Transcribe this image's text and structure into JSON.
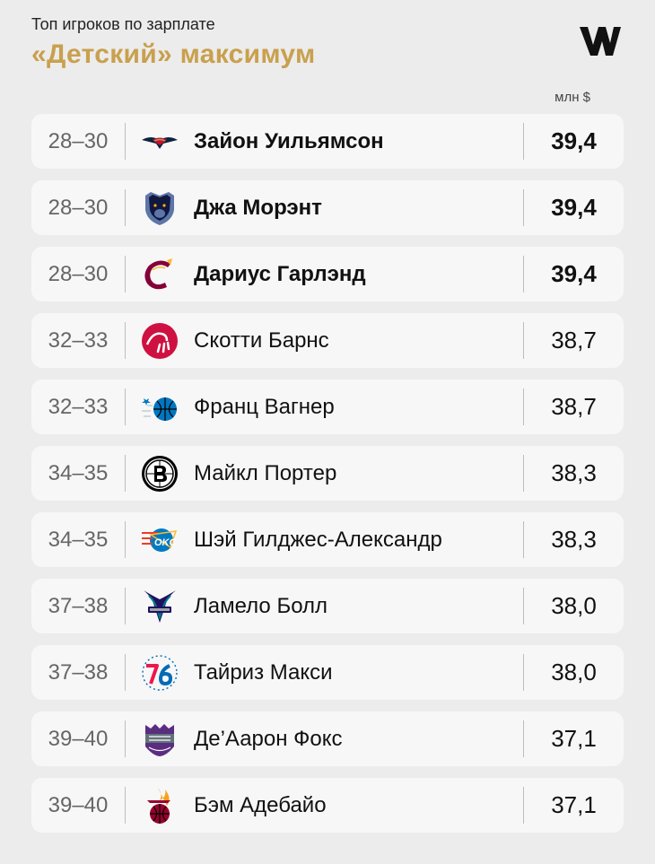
{
  "header": {
    "subtitle": "Топ игроков по зарплате",
    "title": "«Детский» максимум",
    "unit": "млн $",
    "accent_color": "#c9a04e"
  },
  "rows": [
    {
      "rank": "28–30",
      "name": "Зайон Уильямсон",
      "value": "39,4",
      "team_icon": "pelicans-logo-icon",
      "highlighted": true
    },
    {
      "rank": "28–30",
      "name": "Джа Морэнт",
      "value": "39,4",
      "team_icon": "grizzlies-logo-icon",
      "highlighted": true
    },
    {
      "rank": "28–30",
      "name": "Дариус Гарлэнд",
      "value": "39,4",
      "team_icon": "cavaliers-logo-icon",
      "highlighted": true
    },
    {
      "rank": "32–33",
      "name": "Скотти Барнс",
      "value": "38,7",
      "team_icon": "raptors-logo-icon",
      "highlighted": false
    },
    {
      "rank": "32–33",
      "name": "Франц Вагнер",
      "value": "38,7",
      "team_icon": "magic-logo-icon",
      "highlighted": false
    },
    {
      "rank": "34–35",
      "name": "Майкл Портер",
      "value": "38,3",
      "team_icon": "nets-logo-icon",
      "highlighted": false
    },
    {
      "rank": "34–35",
      "name": "Шэй Гилджес-Александр",
      "value": "38,3",
      "team_icon": "thunder-logo-icon",
      "highlighted": false
    },
    {
      "rank": "37–38",
      "name": "Ламело Болл",
      "value": "38,0",
      "team_icon": "hornets-logo-icon",
      "highlighted": false
    },
    {
      "rank": "37–38",
      "name": "Тайриз Макси",
      "value": "38,0",
      "team_icon": "sixers-logo-icon",
      "highlighted": false
    },
    {
      "rank": "39–40",
      "name": "Де’Аарон Фокс",
      "value": "37,1",
      "team_icon": "kings-logo-icon",
      "highlighted": false
    },
    {
      "rank": "39–40",
      "name": "Бэм Адебайо",
      "value": "37,1",
      "team_icon": "heat-logo-icon",
      "highlighted": false
    }
  ]
}
